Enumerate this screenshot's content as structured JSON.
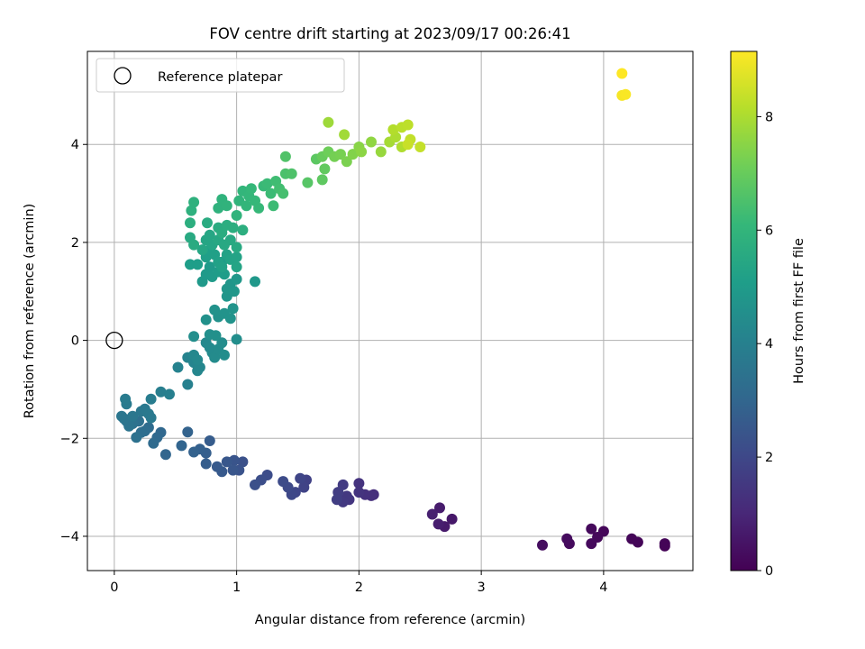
{
  "chart_data": {
    "type": "scatter",
    "title": "FOV centre drift starting at 2023/09/17 00:26:41",
    "xlabel": "Angular distance from reference (arcmin)",
    "ylabel": "Rotation from reference (arcmin)",
    "xlim": [
      -0.22,
      4.73
    ],
    "ylim": [
      -4.7,
      5.9
    ],
    "x_ticks": [
      "0",
      "1",
      "2",
      "3",
      "4"
    ],
    "y_ticks": [
      "−4",
      "−2",
      "0",
      "2",
      "4"
    ],
    "grid": true,
    "legend": {
      "placement": "top-left",
      "entries": [
        "Reference platepar"
      ]
    },
    "reference_point": {
      "x": 0,
      "y": 0,
      "marker": "open-circle"
    },
    "colorbar": {
      "label": "Hours from first FF file",
      "range": [
        0,
        9.15
      ],
      "ticks": [
        "0",
        "2",
        "4",
        "6",
        "8"
      ],
      "colormap": "viridis",
      "colors": [
        "#440154",
        "#482878",
        "#3e4989",
        "#31688e",
        "#26828e",
        "#1f9e89",
        "#35b779",
        "#6ece58",
        "#b5de2b",
        "#fde725"
      ]
    },
    "series": [
      {
        "points": [
          [
            4.5,
            -4.2,
            0.05
          ],
          [
            4.5,
            -4.15,
            0.08
          ],
          [
            4.28,
            -4.12,
            0.1
          ],
          [
            4.23,
            -4.05,
            0.12
          ],
          [
            4.0,
            -3.9,
            0.15
          ],
          [
            3.95,
            -4.02,
            0.17
          ],
          [
            3.9,
            -3.85,
            0.2
          ],
          [
            3.9,
            -4.15,
            0.22
          ],
          [
            3.72,
            -4.15,
            0.25
          ],
          [
            3.7,
            -4.05,
            0.28
          ],
          [
            3.5,
            -4.18,
            0.3
          ],
          [
            2.76,
            -3.65,
            0.6
          ],
          [
            2.7,
            -3.8,
            0.65
          ],
          [
            2.66,
            -3.42,
            0.7
          ],
          [
            2.65,
            -3.75,
            0.75
          ],
          [
            2.6,
            -3.55,
            0.8
          ],
          [
            2.12,
            -3.15,
            1.2
          ],
          [
            2.1,
            -3.17,
            1.25
          ],
          [
            2.05,
            -3.15,
            1.3
          ],
          [
            2.0,
            -2.92,
            1.35
          ],
          [
            2.0,
            -3.1,
            1.4
          ],
          [
            1.92,
            -3.25,
            1.45
          ],
          [
            1.9,
            -3.18,
            1.5
          ],
          [
            1.87,
            -3.3,
            1.55
          ],
          [
            1.87,
            -2.95,
            1.6
          ],
          [
            1.83,
            -3.1,
            1.65
          ],
          [
            1.82,
            -3.25,
            1.7
          ],
          [
            1.57,
            -2.85,
            1.8
          ],
          [
            1.55,
            -3.0,
            1.85
          ],
          [
            1.52,
            -2.82,
            1.9
          ],
          [
            1.48,
            -3.1,
            1.95
          ],
          [
            1.45,
            -3.15,
            2.0
          ],
          [
            1.42,
            -3.0,
            2.05
          ],
          [
            1.38,
            -2.88,
            2.1
          ],
          [
            1.25,
            -2.75,
            2.15
          ],
          [
            1.2,
            -2.85,
            2.2
          ],
          [
            1.15,
            -2.95,
            2.25
          ],
          [
            1.05,
            -2.48,
            2.3
          ],
          [
            1.02,
            -2.65,
            2.35
          ],
          [
            0.98,
            -2.45,
            2.4
          ],
          [
            0.97,
            -2.65,
            2.45
          ],
          [
            0.92,
            -2.48,
            2.5
          ],
          [
            0.88,
            -2.68,
            2.55
          ],
          [
            0.84,
            -2.58,
            2.6
          ],
          [
            0.78,
            -2.05,
            2.65
          ],
          [
            0.75,
            -2.52,
            2.7
          ],
          [
            0.75,
            -2.3,
            2.75
          ],
          [
            0.7,
            -2.22,
            2.8
          ],
          [
            0.65,
            -2.28,
            2.85
          ],
          [
            0.6,
            -1.87,
            2.9
          ],
          [
            0.55,
            -2.15,
            2.95
          ],
          [
            0.42,
            -2.33,
            3.0
          ],
          [
            0.38,
            -1.88,
            3.05
          ],
          [
            0.35,
            -1.98,
            3.1
          ],
          [
            0.32,
            -2.1,
            3.15
          ],
          [
            0.28,
            -1.78,
            3.2
          ],
          [
            0.25,
            -1.85,
            3.25
          ],
          [
            0.22,
            -1.88,
            3.3
          ],
          [
            0.2,
            -1.65,
            3.35
          ],
          [
            0.18,
            -1.98,
            3.4
          ],
          [
            0.15,
            -1.7,
            3.45
          ],
          [
            0.12,
            -1.75,
            3.5
          ],
          [
            0.1,
            -1.65,
            3.52
          ],
          [
            0.08,
            -1.6,
            3.55
          ],
          [
            0.06,
            -1.55,
            3.6
          ],
          [
            0.15,
            -1.55,
            3.62
          ],
          [
            0.22,
            -1.45,
            3.65
          ],
          [
            0.25,
            -1.4,
            3.68
          ],
          [
            0.28,
            -1.5,
            3.7
          ],
          [
            0.3,
            -1.58,
            3.72
          ],
          [
            0.1,
            -1.3,
            3.75
          ],
          [
            0.09,
            -1.2,
            3.8
          ],
          [
            0.3,
            -1.2,
            3.85
          ],
          [
            0.38,
            -1.05,
            3.9
          ],
          [
            0.45,
            -1.1,
            3.95
          ],
          [
            0.6,
            -0.9,
            4.0
          ],
          [
            0.52,
            -0.55,
            4.05
          ],
          [
            0.6,
            -0.35,
            4.1
          ],
          [
            0.65,
            -0.45,
            4.15
          ],
          [
            0.68,
            -0.62,
            4.2
          ],
          [
            0.7,
            -0.55,
            4.22
          ],
          [
            0.65,
            -0.3,
            4.25
          ],
          [
            0.68,
            -0.4,
            4.28
          ],
          [
            0.75,
            -0.05,
            4.3
          ],
          [
            0.78,
            -0.15,
            4.32
          ],
          [
            0.8,
            -0.25,
            4.35
          ],
          [
            0.82,
            -0.35,
            4.38
          ],
          [
            0.85,
            -0.18,
            4.4
          ],
          [
            0.88,
            -0.05,
            4.42
          ],
          [
            0.9,
            -0.3,
            4.45
          ],
          [
            1.0,
            0.02,
            4.5
          ],
          [
            0.65,
            0.08,
            4.52
          ],
          [
            0.78,
            0.12,
            4.55
          ],
          [
            0.83,
            0.1,
            4.58
          ],
          [
            0.75,
            0.42,
            4.6
          ],
          [
            0.85,
            0.48,
            4.62
          ],
          [
            0.82,
            0.62,
            4.65
          ],
          [
            0.9,
            0.55,
            4.68
          ],
          [
            0.95,
            0.45,
            4.7
          ],
          [
            0.97,
            0.65,
            4.72
          ],
          [
            0.92,
            0.9,
            4.75
          ],
          [
            0.92,
            1.05,
            4.78
          ],
          [
            0.95,
            1.15,
            4.8
          ],
          [
            0.98,
            1.0,
            4.82
          ],
          [
            1.0,
            1.25,
            4.85
          ],
          [
            1.15,
            1.2,
            4.88
          ],
          [
            0.72,
            1.2,
            4.9
          ],
          [
            0.75,
            1.35,
            4.92
          ],
          [
            0.78,
            1.5,
            4.95
          ],
          [
            0.8,
            1.3,
            4.98
          ],
          [
            0.85,
            1.4,
            5.0
          ],
          [
            0.88,
            1.6,
            5.02
          ],
          [
            0.9,
            1.35,
            5.05
          ],
          [
            0.62,
            1.55,
            5.08
          ],
          [
            0.68,
            1.55,
            5.1
          ],
          [
            0.75,
            1.7,
            5.12
          ],
          [
            0.78,
            1.85,
            5.15
          ],
          [
            0.82,
            1.75,
            5.18
          ],
          [
            0.85,
            1.6,
            5.2
          ],
          [
            0.88,
            1.5,
            5.22
          ],
          [
            0.92,
            1.75,
            5.25
          ],
          [
            0.95,
            1.65,
            5.28
          ],
          [
            1.0,
            1.7,
            5.3
          ],
          [
            1.0,
            1.5,
            5.32
          ],
          [
            0.8,
            1.95,
            5.35
          ],
          [
            0.75,
            2.05,
            5.38
          ],
          [
            0.72,
            1.85,
            5.4
          ],
          [
            0.78,
            2.15,
            5.42
          ],
          [
            0.85,
            2.05,
            5.45
          ],
          [
            0.9,
            1.95,
            5.48
          ],
          [
            0.95,
            2.05,
            5.5
          ],
          [
            1.0,
            1.9,
            5.52
          ],
          [
            0.62,
            2.1,
            5.55
          ],
          [
            0.65,
            1.95,
            5.58
          ],
          [
            0.76,
            2.4,
            5.6
          ],
          [
            0.85,
            2.3,
            5.62
          ],
          [
            0.88,
            2.2,
            5.65
          ],
          [
            0.92,
            2.35,
            5.68
          ],
          [
            0.97,
            2.3,
            5.7
          ],
          [
            1.05,
            2.25,
            5.72
          ],
          [
            0.62,
            2.4,
            5.75
          ],
          [
            0.63,
            2.65,
            5.8
          ],
          [
            0.65,
            2.82,
            5.82
          ],
          [
            0.85,
            2.7,
            5.85
          ],
          [
            0.88,
            2.88,
            5.88
          ],
          [
            0.92,
            2.75,
            5.9
          ],
          [
            1.0,
            2.55,
            5.92
          ],
          [
            1.02,
            2.85,
            5.95
          ],
          [
            1.05,
            3.05,
            6.0
          ],
          [
            1.08,
            2.75,
            6.02
          ],
          [
            1.1,
            2.95,
            6.05
          ],
          [
            1.12,
            3.1,
            6.08
          ],
          [
            1.15,
            2.85,
            6.1
          ],
          [
            1.18,
            2.7,
            6.12
          ],
          [
            1.22,
            3.15,
            6.15
          ],
          [
            1.25,
            3.2,
            6.2
          ],
          [
            1.28,
            3.0,
            6.22
          ],
          [
            1.3,
            2.75,
            6.25
          ],
          [
            1.32,
            3.25,
            6.3
          ],
          [
            1.35,
            3.1,
            6.35
          ],
          [
            1.38,
            3.0,
            6.4
          ],
          [
            1.4,
            3.4,
            6.5
          ],
          [
            1.45,
            3.4,
            6.55
          ],
          [
            1.4,
            3.75,
            6.6
          ],
          [
            1.58,
            3.22,
            6.7
          ],
          [
            1.65,
            3.7,
            6.8
          ],
          [
            1.7,
            3.28,
            6.85
          ],
          [
            1.72,
            3.5,
            6.9
          ],
          [
            1.7,
            3.75,
            7.0
          ],
          [
            1.75,
            3.85,
            7.1
          ],
          [
            1.8,
            3.75,
            7.2
          ],
          [
            1.85,
            3.8,
            7.25
          ],
          [
            1.9,
            3.65,
            7.3
          ],
          [
            1.95,
            3.8,
            7.4
          ],
          [
            2.0,
            3.95,
            7.5
          ],
          [
            2.02,
            3.85,
            7.55
          ],
          [
            2.1,
            4.05,
            7.6
          ],
          [
            2.18,
            3.85,
            7.7
          ],
          [
            1.75,
            4.45,
            7.8
          ],
          [
            1.88,
            4.2,
            7.85
          ],
          [
            2.25,
            4.05,
            7.9
          ],
          [
            2.3,
            4.15,
            8.0
          ],
          [
            2.35,
            3.95,
            8.05
          ],
          [
            2.28,
            4.3,
            8.1
          ],
          [
            2.35,
            4.35,
            8.2
          ],
          [
            2.4,
            4.4,
            8.25
          ],
          [
            2.42,
            4.1,
            8.3
          ],
          [
            2.5,
            3.95,
            8.35
          ],
          [
            2.4,
            4.0,
            8.4
          ],
          [
            4.15,
            5.0,
            9.05
          ],
          [
            4.18,
            5.02,
            9.1
          ],
          [
            4.15,
            5.45,
            9.15
          ]
        ]
      }
    ]
  }
}
